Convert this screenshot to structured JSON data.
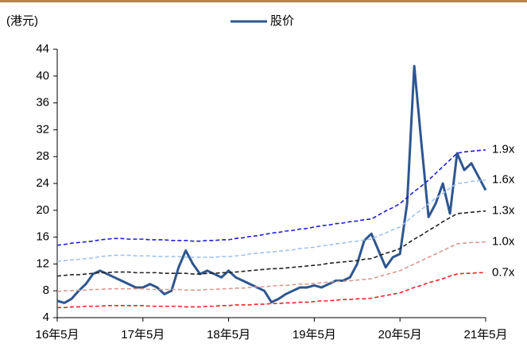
{
  "chart_data": {
    "type": "line",
    "y_unit": "(港元)",
    "categories": [
      "16年5月",
      null,
      null,
      null,
      null,
      null,
      null,
      null,
      null,
      null,
      null,
      null,
      "17年5月",
      null,
      null,
      null,
      null,
      null,
      null,
      null,
      null,
      null,
      null,
      null,
      "18年5月",
      null,
      null,
      null,
      null,
      null,
      null,
      null,
      null,
      null,
      null,
      null,
      "19年5月",
      null,
      null,
      null,
      null,
      null,
      null,
      null,
      null,
      null,
      null,
      null,
      "20年5月",
      null,
      null,
      null,
      null,
      null,
      null,
      null,
      null,
      null,
      null,
      null,
      "21年5月"
    ],
    "ylim": [
      4,
      44
    ],
    "yticks": [
      4,
      8,
      12,
      16,
      20,
      24,
      28,
      32,
      36,
      40,
      44
    ],
    "legend": "top",
    "series": [
      {
        "name": "股价",
        "color": "#2e5690",
        "dash": false,
        "legend": true,
        "values": [
          6.5,
          6.2,
          6.8,
          8.0,
          9.0,
          10.5,
          11.0,
          10.5,
          10.0,
          9.5,
          9.0,
          8.5,
          8.5,
          9.0,
          8.5,
          7.5,
          8.0,
          11.5,
          14.0,
          12.0,
          10.5,
          11.0,
          10.5,
          10.0,
          11.0,
          10.0,
          9.5,
          9.0,
          8.5,
          8.0,
          6.3,
          6.8,
          7.5,
          8.0,
          8.5,
          8.5,
          8.8,
          8.5,
          9.0,
          9.5,
          9.5,
          10.0,
          12.0,
          15.5,
          16.5,
          14.0,
          11.5,
          13.0,
          13.5,
          21.0,
          41.5,
          30.0,
          19.0,
          21.0,
          24.0,
          19.5,
          28.5,
          26.0,
          27.0,
          25.0,
          23.0
        ]
      },
      {
        "name": "1.9x",
        "color": "#1f1fd0",
        "dash": true,
        "legend": false,
        "values": [
          14.8,
          14.9,
          15.1,
          15.2,
          15.3,
          15.4,
          15.6,
          15.7,
          15.8,
          15.8,
          15.7,
          15.7,
          15.7,
          15.6,
          15.6,
          15.6,
          15.5,
          15.5,
          15.5,
          15.4,
          15.4,
          15.5,
          15.5,
          15.6,
          15.6,
          15.8,
          15.9,
          16.1,
          16.2,
          16.4,
          16.6,
          16.7,
          16.9,
          17.0,
          17.2,
          17.3,
          17.5,
          17.7,
          17.8,
          18.0,
          18.1,
          18.3,
          18.4,
          18.6,
          18.7,
          19.3,
          19.9,
          20.4,
          21.0,
          21.9,
          22.8,
          23.6,
          24.5,
          25.5,
          26.5,
          27.5,
          28.5,
          28.7,
          28.8,
          28.9,
          29.0
        ]
      },
      {
        "name": "1.6x",
        "color": "#a3c2ec",
        "dash": true,
        "legend": false,
        "values": [
          12.4,
          12.5,
          12.6,
          12.7,
          12.8,
          12.9,
          13.1,
          13.2,
          13.3,
          13.3,
          13.3,
          13.2,
          13.2,
          13.2,
          13.1,
          13.1,
          13.1,
          13.1,
          13.0,
          13.0,
          13.0,
          13.0,
          13.0,
          13.1,
          13.1,
          13.2,
          13.3,
          13.5,
          13.6,
          13.7,
          13.8,
          13.9,
          14.0,
          14.1,
          14.3,
          14.4,
          14.5,
          14.7,
          14.8,
          15.0,
          15.1,
          15.3,
          15.4,
          15.6,
          15.7,
          16.2,
          16.6,
          17.1,
          17.5,
          18.4,
          19.3,
          20.1,
          21.0,
          21.8,
          22.5,
          23.3,
          24.0,
          24.1,
          24.3,
          24.4,
          24.5
        ]
      },
      {
        "name": "1.3x",
        "color": "#222222",
        "dash": true,
        "legend": false,
        "values": [
          10.2,
          10.3,
          10.4,
          10.4,
          10.5,
          10.6,
          10.7,
          10.7,
          10.8,
          10.8,
          10.8,
          10.7,
          10.7,
          10.7,
          10.7,
          10.6,
          10.6,
          10.6,
          10.6,
          10.5,
          10.5,
          10.6,
          10.6,
          10.7,
          10.7,
          10.8,
          10.9,
          11.0,
          11.1,
          11.2,
          11.3,
          11.3,
          11.4,
          11.5,
          11.6,
          11.7,
          11.8,
          11.9,
          12.1,
          12.2,
          12.3,
          12.4,
          12.5,
          12.7,
          12.8,
          13.2,
          13.6,
          13.9,
          14.3,
          15.0,
          15.7,
          16.3,
          17.0,
          17.6,
          18.3,
          18.9,
          19.5,
          19.6,
          19.7,
          19.8,
          19.9
        ]
      },
      {
        "name": "1.0x",
        "color": "#d99a90",
        "dash": true,
        "legend": false,
        "values": [
          7.9,
          8.0,
          8.0,
          8.1,
          8.1,
          8.2,
          8.2,
          8.3,
          8.3,
          8.3,
          8.3,
          8.3,
          8.3,
          8.2,
          8.2,
          8.2,
          8.2,
          8.2,
          8.1,
          8.1,
          8.1,
          8.2,
          8.2,
          8.3,
          8.3,
          8.4,
          8.4,
          8.5,
          8.6,
          8.6,
          8.7,
          8.8,
          8.8,
          8.9,
          9.0,
          9.0,
          9.1,
          9.2,
          9.3,
          9.4,
          9.4,
          9.5,
          9.6,
          9.7,
          9.8,
          10.1,
          10.4,
          10.7,
          11.0,
          11.5,
          12.0,
          12.5,
          13.0,
          13.5,
          14.0,
          14.5,
          15.0,
          15.1,
          15.2,
          15.2,
          15.3
        ]
      },
      {
        "name": "0.7x",
        "color": "#e8262b",
        "dash": true,
        "legend": false,
        "values": [
          5.5,
          5.5,
          5.6,
          5.6,
          5.7,
          5.7,
          5.7,
          5.8,
          5.8,
          5.8,
          5.8,
          5.8,
          5.8,
          5.7,
          5.7,
          5.7,
          5.7,
          5.7,
          5.6,
          5.6,
          5.6,
          5.7,
          5.7,
          5.8,
          5.8,
          5.9,
          5.9,
          5.9,
          6.0,
          6.0,
          6.1,
          6.1,
          6.2,
          6.2,
          6.3,
          6.3,
          6.4,
          6.5,
          6.5,
          6.6,
          6.7,
          6.7,
          6.8,
          6.8,
          6.9,
          7.1,
          7.3,
          7.5,
          7.7,
          8.1,
          8.5,
          8.8,
          9.2,
          9.5,
          9.8,
          10.2,
          10.5,
          10.6,
          10.6,
          10.7,
          10.7
        ]
      }
    ]
  }
}
